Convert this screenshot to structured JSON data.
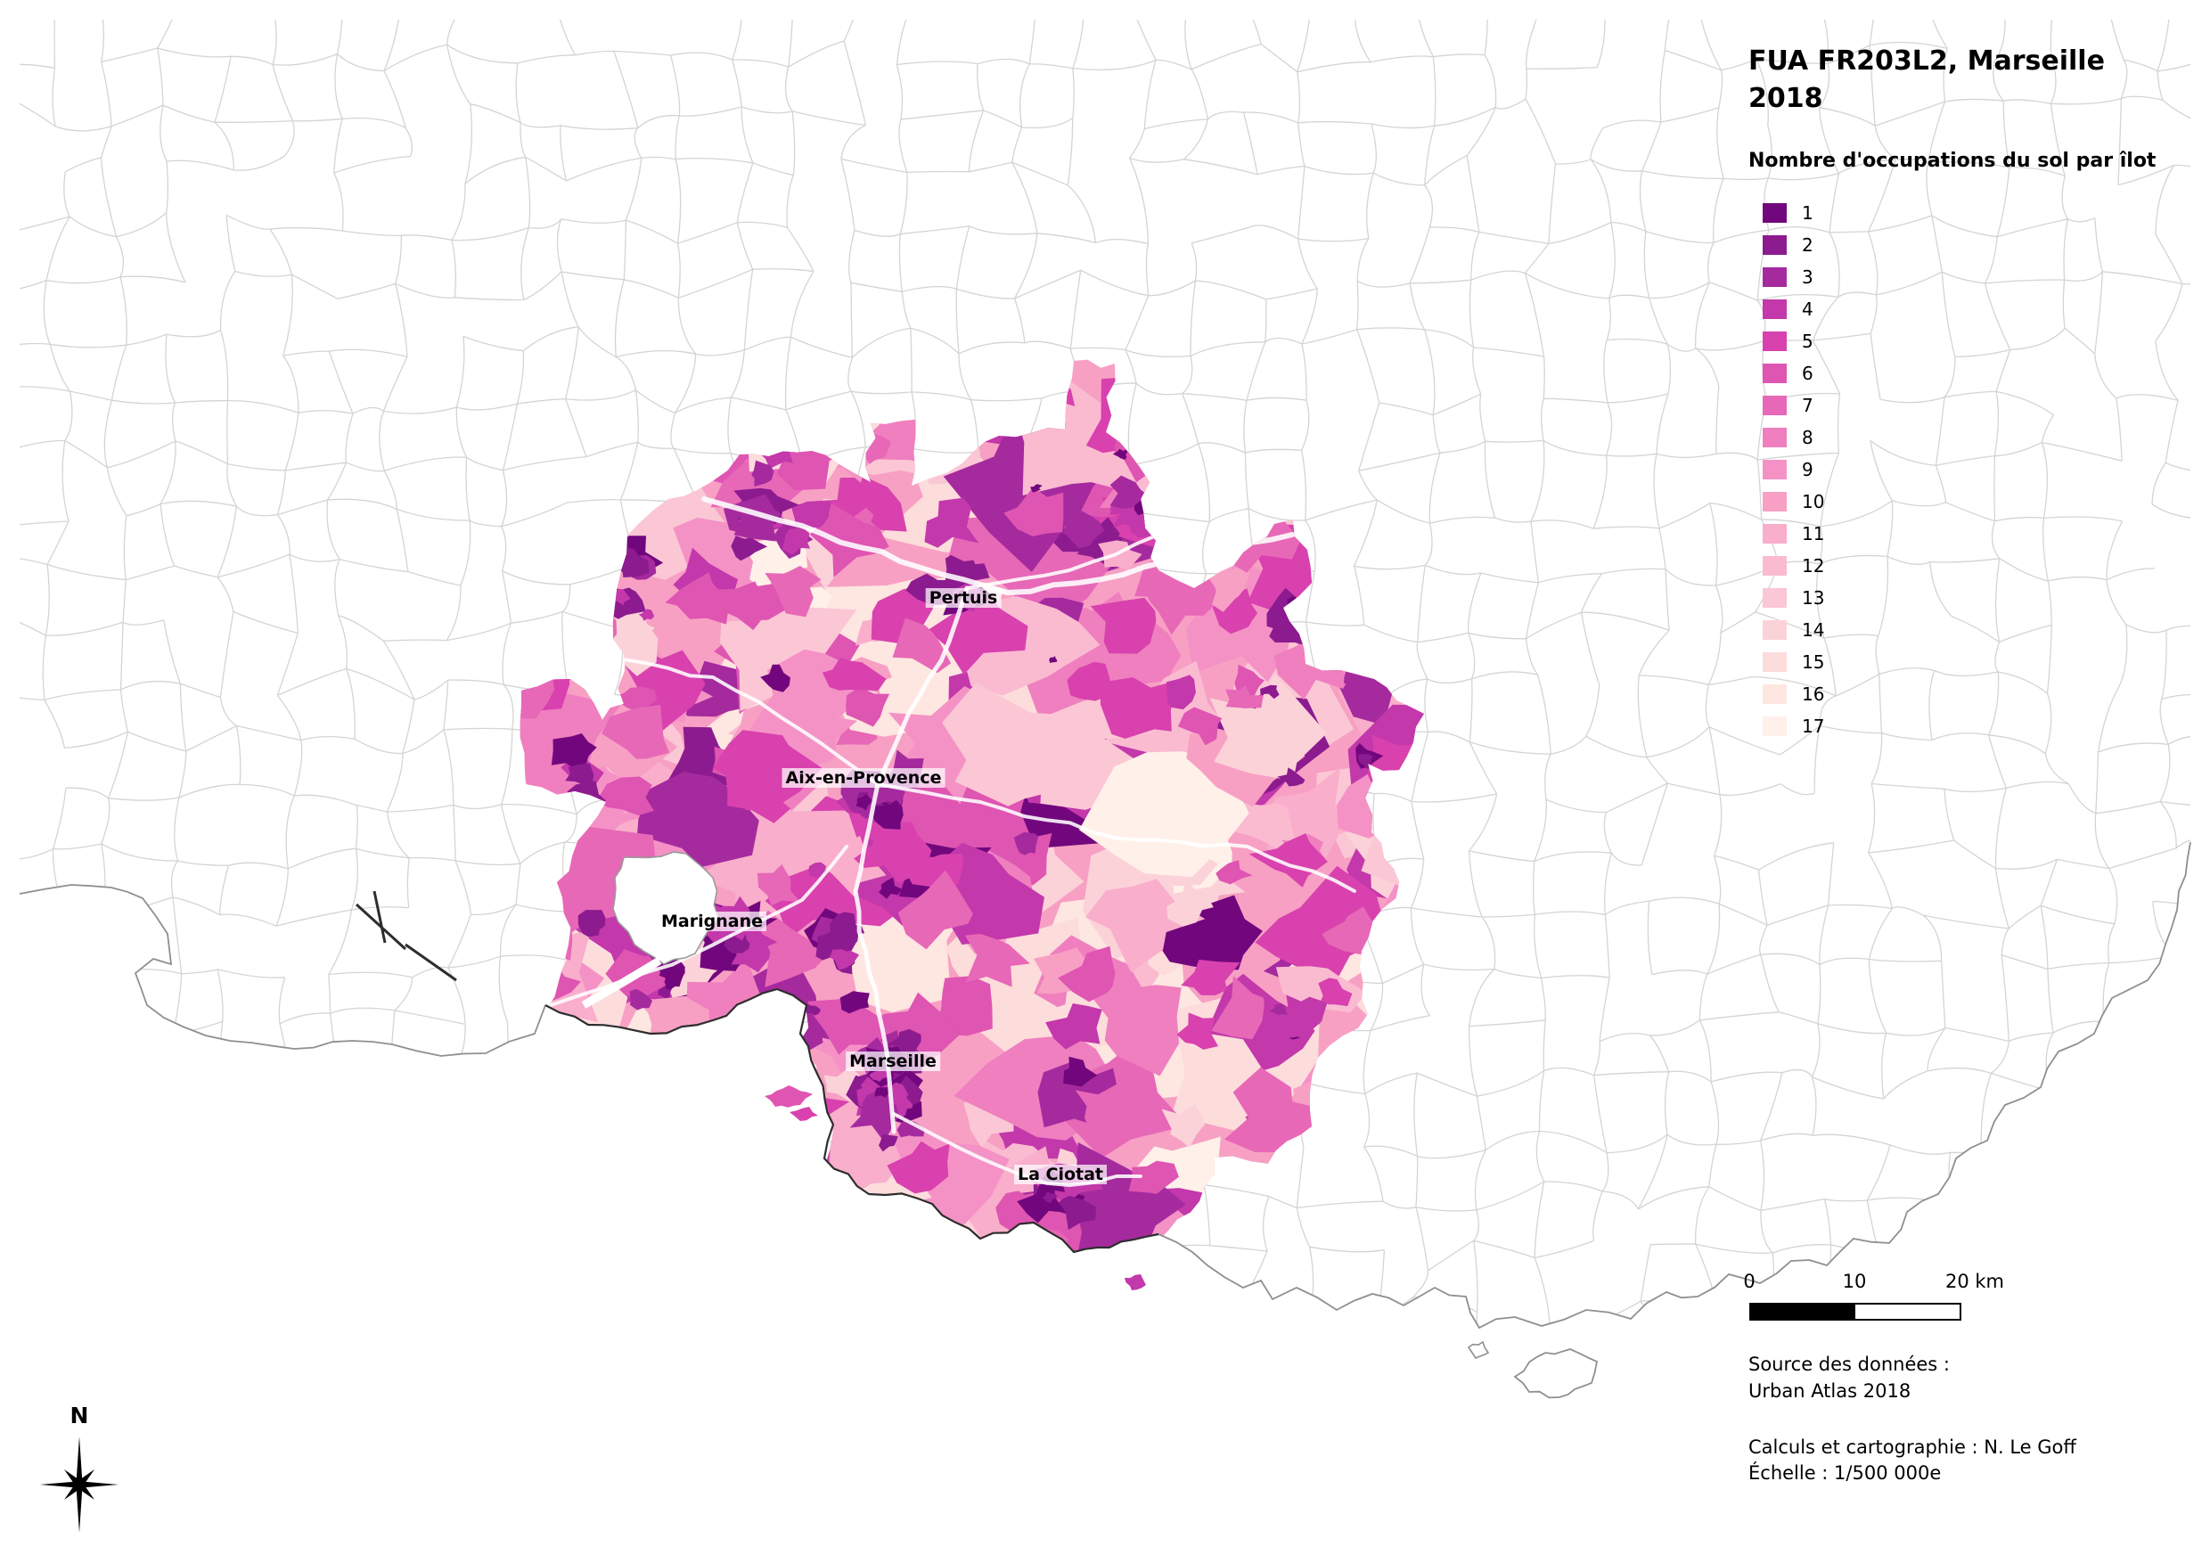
{
  "map_title": {
    "line1": "FUA FR203L2, Marseille",
    "line2": "2018"
  },
  "legend": {
    "title": "Nombre d'occupations du sol par îlot",
    "items": [
      {
        "value": "1",
        "color": "#72077D"
      },
      {
        "value": "2",
        "color": "#8C1B8F"
      },
      {
        "value": "3",
        "color": "#A52A9E"
      },
      {
        "value": "4",
        "color": "#C338AB"
      },
      {
        "value": "5",
        "color": "#D841AE"
      },
      {
        "value": "6",
        "color": "#DF55B2"
      },
      {
        "value": "7",
        "color": "#E768B7"
      },
      {
        "value": "8",
        "color": "#EF7FBF"
      },
      {
        "value": "9",
        "color": "#F492C6"
      },
      {
        "value": "10",
        "color": "#F7A0C4"
      },
      {
        "value": "11",
        "color": "#F9AECB"
      },
      {
        "value": "12",
        "color": "#FABBD1"
      },
      {
        "value": "13",
        "color": "#FBC7D5"
      },
      {
        "value": "14",
        "color": "#FCD2D9"
      },
      {
        "value": "15",
        "color": "#FDDCDC"
      },
      {
        "value": "16",
        "color": "#FEE6E1"
      },
      {
        "value": "17",
        "color": "#FFF0E9"
      }
    ]
  },
  "cities": {
    "pertuis": "Pertuis",
    "aix": "Aix-en-Provence",
    "marignane": "Marignane",
    "marseille": "Marseille",
    "laciotat": "La Ciotat"
  },
  "scalebar": {
    "tick0": "0",
    "tick1": "10",
    "tick2": "20 km"
  },
  "north": {
    "label": "N"
  },
  "source": {
    "line1": "Source des données :",
    "line2": "Urban Atlas 2018"
  },
  "credits": {
    "line1": "Calculs et cartographie : N. Le Goff",
    "line2": "Échelle : 1/500 000e"
  }
}
